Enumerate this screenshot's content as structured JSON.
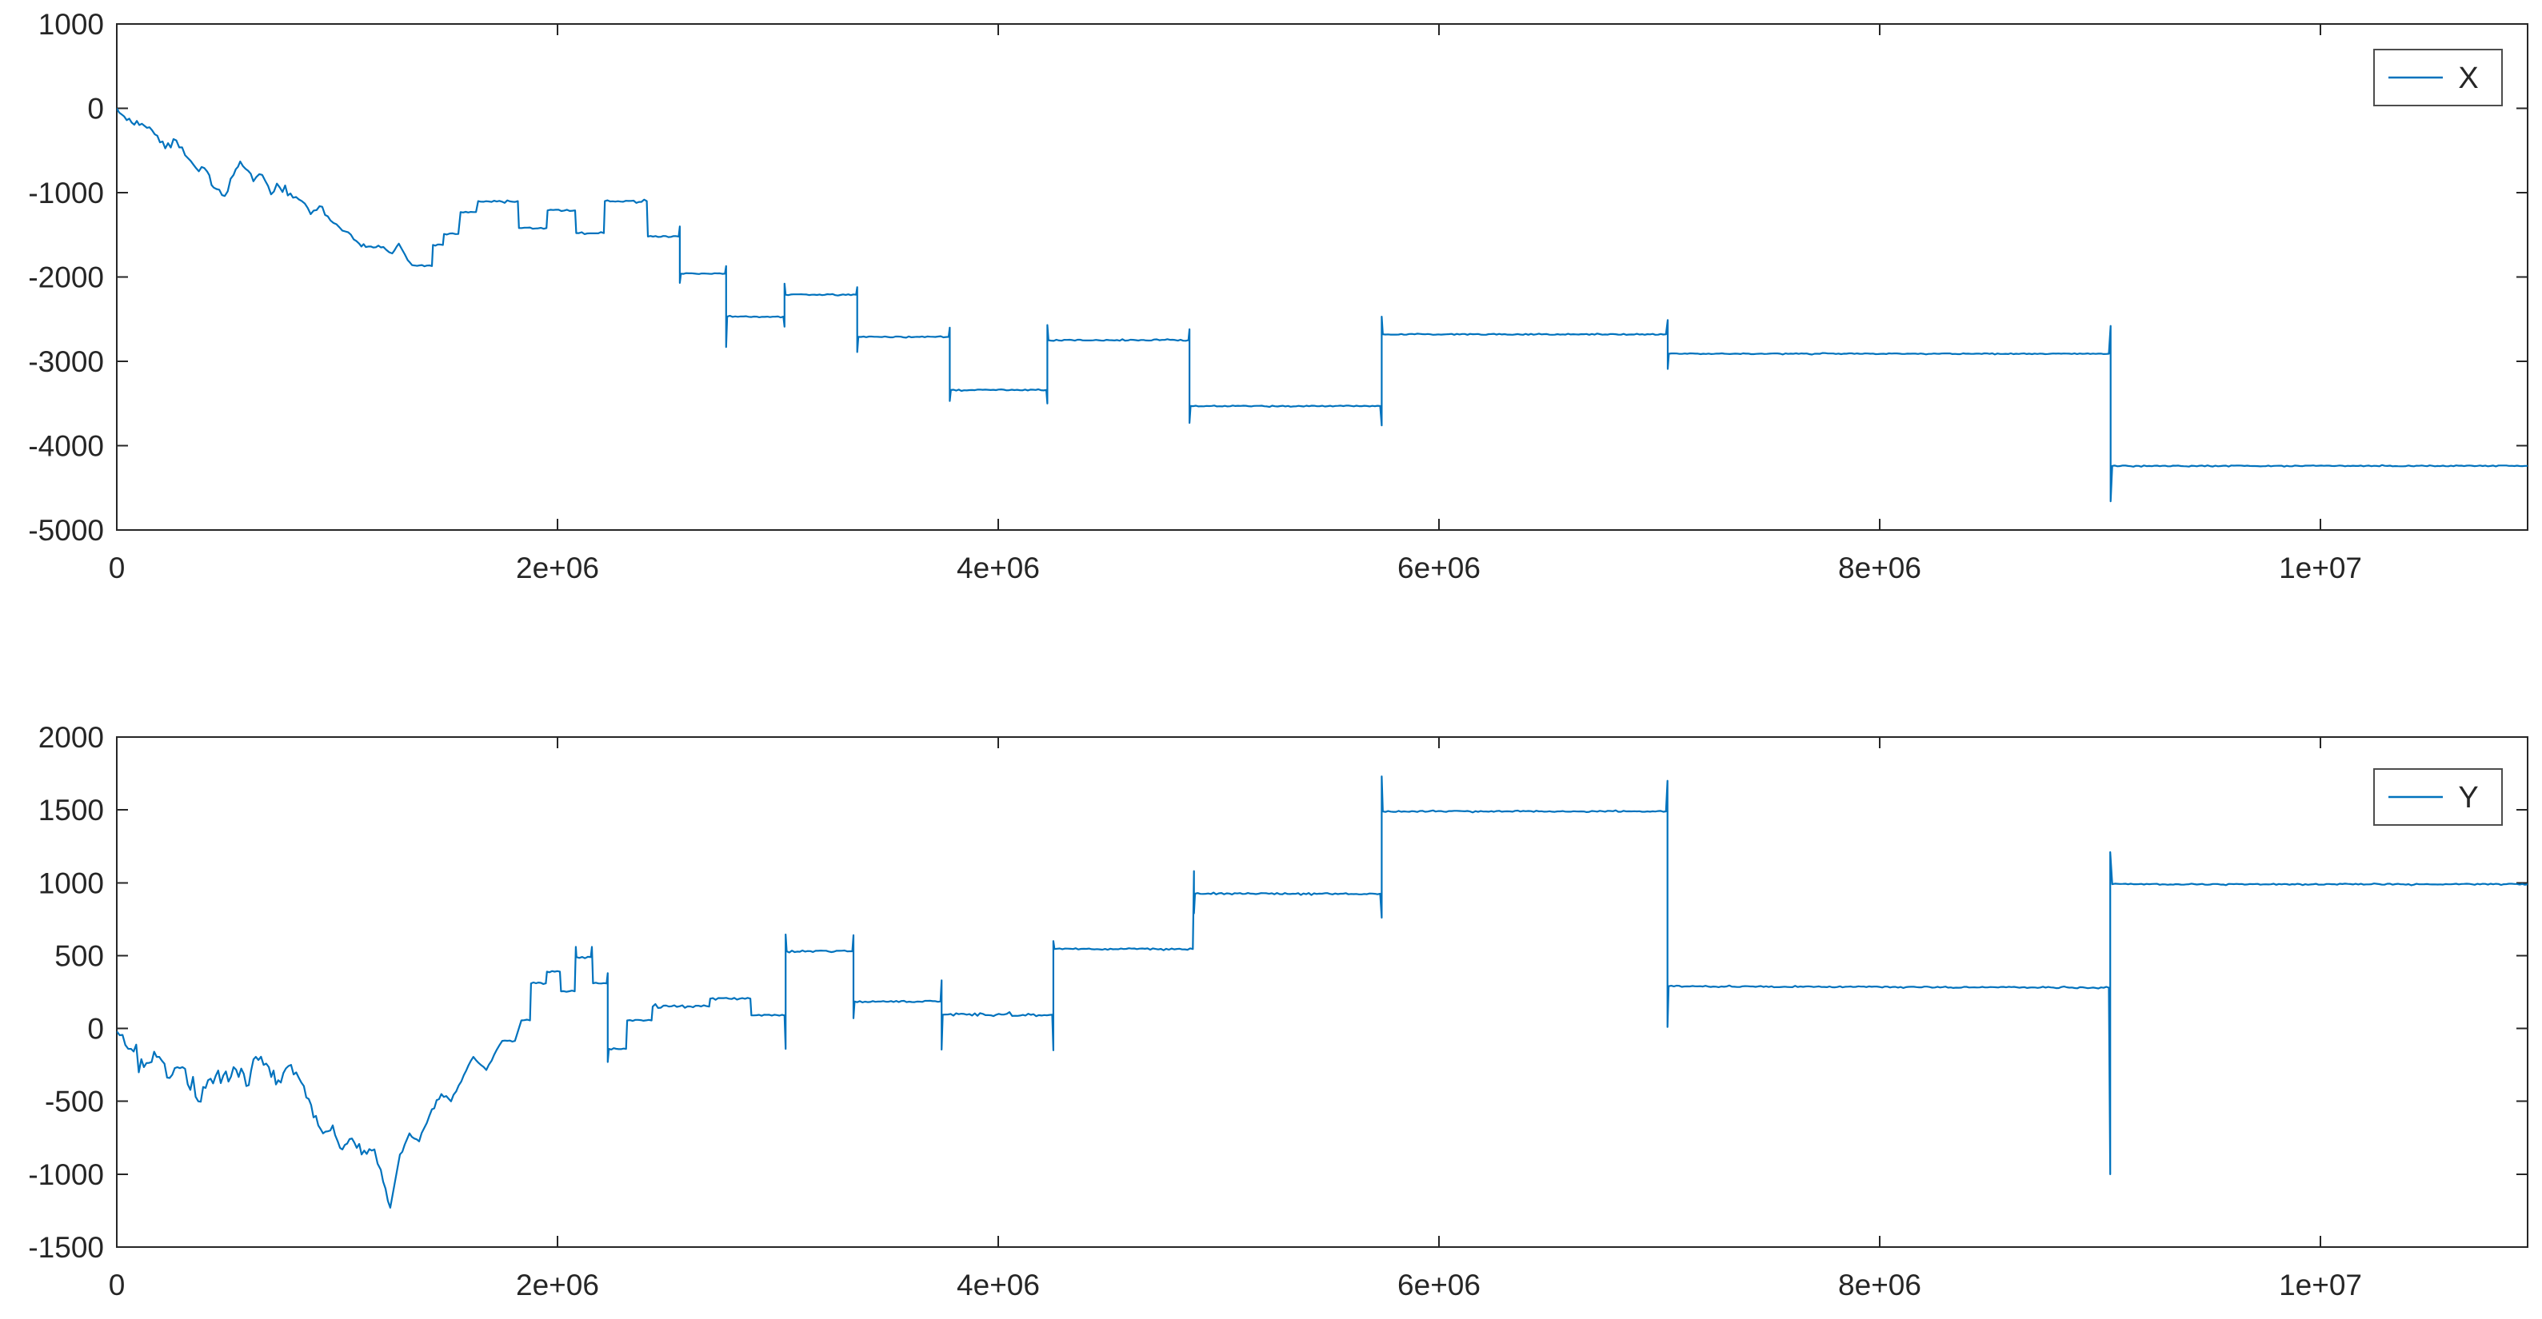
{
  "figure": {
    "background": "#ffffff",
    "axes_color": "#262626",
    "tick_label_color": "#262626",
    "line_color": "#0072BD",
    "legend_border_color": "#4d4d4d"
  },
  "chart_data": [
    {
      "type": "line",
      "title": "",
      "xlabel": "",
      "ylabel": "",
      "grid": false,
      "legend": {
        "label": "X",
        "position": "northeast"
      },
      "xlim": [
        0,
        10940000
      ],
      "ylim": [
        -5000,
        1000
      ],
      "x_ticks": [
        0,
        2000000,
        4000000,
        6000000,
        8000000,
        10000000
      ],
      "x_tick_labels": [
        "0",
        "2e+06",
        "4e+06",
        "6e+06",
        "8e+06",
        "1e+07"
      ],
      "y_ticks": [
        1000,
        0,
        -1000,
        -2000,
        -3000,
        -4000,
        -5000
      ],
      "y_tick_labels": [
        "1000",
        "0",
        "-1000",
        "-2000",
        "-3000",
        "-4000",
        "-5000"
      ],
      "series": [
        {
          "name": "X",
          "points_x_value_noise": [
            [
              0,
              0,
              20
            ],
            [
              45000,
              -140,
              40
            ],
            [
              160000,
              -260,
              45
            ],
            [
              220000,
              -475,
              45
            ],
            [
              270000,
              -380,
              45
            ],
            [
              310000,
              -555,
              45
            ],
            [
              360000,
              -710,
              50
            ],
            [
              410000,
              -750,
              50
            ],
            [
              440000,
              -940,
              45
            ],
            [
              490000,
              -1040,
              40
            ],
            [
              530000,
              -790,
              45
            ],
            [
              560000,
              -630,
              45
            ],
            [
              620000,
              -865,
              45
            ],
            [
              660000,
              -790,
              40
            ],
            [
              700000,
              -1020,
              40
            ],
            [
              740000,
              -940,
              40
            ],
            [
              800000,
              -1060,
              40
            ],
            [
              840000,
              -1100,
              40
            ],
            [
              880000,
              -1255,
              35
            ],
            [
              920000,
              -1160,
              35
            ],
            [
              970000,
              -1330,
              30
            ],
            [
              1010000,
              -1410,
              30
            ],
            [
              1050000,
              -1470,
              25
            ],
            [
              1100000,
              -1605,
              25
            ],
            [
              1130000,
              -1645,
              20
            ],
            [
              1210000,
              -1645,
              15
            ],
            [
              1250000,
              -1720,
              15
            ],
            [
              1280000,
              -1605,
              12
            ],
            [
              1320000,
              -1800,
              12
            ],
            [
              1340000,
              -1860,
              10
            ],
            [
              1430000,
              -1870,
              0
            ],
            [
              1435000,
              -1620,
              8
            ],
            [
              1480000,
              -1620,
              0
            ],
            [
              1485000,
              -1490,
              8
            ],
            [
              1550000,
              -1490,
              0
            ],
            [
              1560000,
              -1230,
              8
            ],
            [
              1630000,
              -1230,
              0
            ],
            [
              1640000,
              -1100,
              12
            ],
            [
              1820000,
              -1100,
              0
            ],
            [
              1825000,
              -1420,
              8
            ],
            [
              1950000,
              -1420,
              0
            ],
            [
              1955000,
              -1210,
              8
            ],
            [
              2080000,
              -1210,
              0
            ],
            [
              2085000,
              -1480,
              8
            ],
            [
              2210000,
              -1480,
              0
            ],
            [
              2215000,
              -1100,
              12
            ],
            [
              2405000,
              -1100,
              0
            ],
            [
              2410000,
              -1520,
              8
            ],
            [
              2550000,
              -1520,
              0
            ],
            [
              2555000,
              -1400,
              0
            ],
            [
              2555000,
              -2070,
              0
            ],
            [
              2560000,
              -1960,
              6
            ],
            [
              2760000,
              -1960,
              0
            ],
            [
              2765000,
              -1870,
              0
            ],
            [
              2765000,
              -2830,
              0
            ],
            [
              2770000,
              -2470,
              6
            ],
            [
              3025000,
              -2470,
              0
            ],
            [
              3030000,
              -2590,
              0
            ],
            [
              3030000,
              -2080,
              0
            ],
            [
              3035000,
              -2210,
              7
            ],
            [
              3355000,
              -2210,
              0
            ],
            [
              3360000,
              -2120,
              0
            ],
            [
              3360000,
              -2890,
              0
            ],
            [
              3365000,
              -2710,
              6
            ],
            [
              3775000,
              -2710,
              0
            ],
            [
              3780000,
              -2600,
              0
            ],
            [
              3780000,
              -3470,
              0
            ],
            [
              3785000,
              -3340,
              6
            ],
            [
              4218000,
              -3340,
              0
            ],
            [
              4223000,
              -3500,
              0
            ],
            [
              4223000,
              -2570,
              0
            ],
            [
              4228000,
              -2750,
              7
            ],
            [
              4863000,
              -2750,
              0
            ],
            [
              4868000,
              -2620,
              0
            ],
            [
              4868000,
              -3730,
              0
            ],
            [
              4873000,
              -3530,
              6
            ],
            [
              5733000,
              -3530,
              0
            ],
            [
              5740000,
              -3760,
              0
            ],
            [
              5740000,
              -2470,
              0
            ],
            [
              5745000,
              -2680,
              6
            ],
            [
              7030000,
              -2680,
              0
            ],
            [
              7038000,
              -2510,
              0
            ],
            [
              7038000,
              -3090,
              0
            ],
            [
              7043000,
              -2910,
              5
            ],
            [
              9040000,
              -2910,
              0
            ],
            [
              9048000,
              -2580,
              0
            ],
            [
              9048000,
              -4660,
              0
            ],
            [
              9055000,
              -4240,
              5
            ],
            [
              10940000,
              -4240,
              0
            ]
          ]
        }
      ]
    },
    {
      "type": "line",
      "title": "",
      "xlabel": "",
      "ylabel": "",
      "grid": false,
      "legend": {
        "label": "Y",
        "position": "northeast"
      },
      "xlim": [
        0,
        10940000
      ],
      "ylim": [
        -1500,
        2000
      ],
      "x_ticks": [
        0,
        2000000,
        4000000,
        6000000,
        8000000,
        10000000
      ],
      "x_tick_labels": [
        "0",
        "2e+06",
        "4e+06",
        "6e+06",
        "8e+06",
        "1e+07"
      ],
      "y_ticks": [
        2000,
        1500,
        1000,
        500,
        0,
        -500,
        -1000,
        -1500
      ],
      "y_tick_labels": [
        "2000",
        "1500",
        "1000",
        "500",
        "0",
        "-500",
        "-1000",
        "-1500"
      ],
      "series": [
        {
          "name": "Y",
          "points_x_value_noise": [
            [
              0,
              -20,
              25
            ],
            [
              65000,
              -140,
              50
            ],
            [
              123000,
              -265,
              50
            ],
            [
              181000,
              -195,
              50
            ],
            [
              240000,
              -340,
              50
            ],
            [
              298000,
              -265,
              50
            ],
            [
              370000,
              -500,
              45
            ],
            [
              414000,
              -355,
              45
            ],
            [
              472000,
              -375,
              45
            ],
            [
              530000,
              -265,
              45
            ],
            [
              588000,
              -395,
              45
            ],
            [
              631000,
              -195,
              45
            ],
            [
              690000,
              -265,
              45
            ],
            [
              733000,
              -355,
              40
            ],
            [
              791000,
              -250,
              40
            ],
            [
              849000,
              -395,
              40
            ],
            [
              893000,
              -610,
              40
            ],
            [
              936000,
              -720,
              35
            ],
            [
              980000,
              -665,
              35
            ],
            [
              1024000,
              -830,
              35
            ],
            [
              1067000,
              -755,
              35
            ],
            [
              1111000,
              -865,
              30
            ],
            [
              1169000,
              -830,
              30
            ],
            [
              1198000,
              -970,
              25
            ],
            [
              1241000,
              -1230,
              0
            ],
            [
              1285000,
              -865,
              20
            ],
            [
              1328000,
              -720,
              15
            ],
            [
              1372000,
              -775,
              15
            ],
            [
              1430000,
              -555,
              12
            ],
            [
              1473000,
              -450,
              10
            ],
            [
              1517000,
              -500,
              10
            ],
            [
              1575000,
              -320,
              10
            ],
            [
              1618000,
              -195,
              8
            ],
            [
              1677000,
              -285,
              8
            ],
            [
              1749000,
              -85,
              6
            ],
            [
              1807000,
              -85,
              0
            ],
            [
              1836000,
              55,
              6
            ],
            [
              1875000,
              55,
              0
            ],
            [
              1880000,
              310,
              6
            ],
            [
              1947000,
              310,
              0
            ],
            [
              1952000,
              390,
              5
            ],
            [
              2011000,
              390,
              0
            ],
            [
              2016000,
              255,
              5
            ],
            [
              2078000,
              255,
              0
            ],
            [
              2083000,
              560,
              0
            ],
            [
              2086000,
              490,
              6
            ],
            [
              2151000,
              490,
              0
            ],
            [
              2156000,
              560,
              0
            ],
            [
              2161000,
              310,
              5
            ],
            [
              2223000,
              310,
              0
            ],
            [
              2228000,
              380,
              0
            ],
            [
              2228000,
              -230,
              0
            ],
            [
              2233000,
              -140,
              5
            ],
            [
              2311000,
              -140,
              0
            ],
            [
              2316000,
              55,
              5
            ],
            [
              2427000,
              55,
              0
            ],
            [
              2432000,
              150,
              10
            ],
            [
              2688000,
              150,
              0
            ],
            [
              2693000,
              205,
              6
            ],
            [
              2875000,
              205,
              0
            ],
            [
              2880000,
              90,
              5
            ],
            [
              3030000,
              90,
              0
            ],
            [
              3035000,
              -140,
              0
            ],
            [
              3035000,
              645,
              0
            ],
            [
              3040000,
              530,
              6
            ],
            [
              3338000,
              530,
              0
            ],
            [
              3343000,
              640,
              0
            ],
            [
              3343000,
              70,
              0
            ],
            [
              3348000,
              185,
              5
            ],
            [
              3738000,
              185,
              0
            ],
            [
              3743000,
              330,
              0
            ],
            [
              3743000,
              -145,
              0
            ],
            [
              3748000,
              95,
              10
            ],
            [
              4245000,
              95,
              0
            ],
            [
              4250000,
              -150,
              0
            ],
            [
              4250000,
              600,
              0
            ],
            [
              4255000,
              545,
              5
            ],
            [
              4883000,
              545,
              0
            ],
            [
              4888000,
              1080,
              0
            ],
            [
              4888000,
              790,
              0
            ],
            [
              4893000,
              925,
              5
            ],
            [
              5733000,
              925,
              0
            ],
            [
              5740000,
              760,
              0
            ],
            [
              5740000,
              1730,
              0
            ],
            [
              5745000,
              1490,
              4
            ],
            [
              7030000,
              1490,
              0
            ],
            [
              7037000,
              1700,
              0
            ],
            [
              7037000,
              10,
              0
            ],
            [
              7042000,
              290,
              4
            ],
            [
              9040000,
              280,
              0
            ],
            [
              9046000,
              -1000,
              0
            ],
            [
              9046000,
              1210,
              0
            ],
            [
              9055000,
              990,
              4
            ],
            [
              10940000,
              990,
              0
            ]
          ]
        }
      ]
    }
  ]
}
